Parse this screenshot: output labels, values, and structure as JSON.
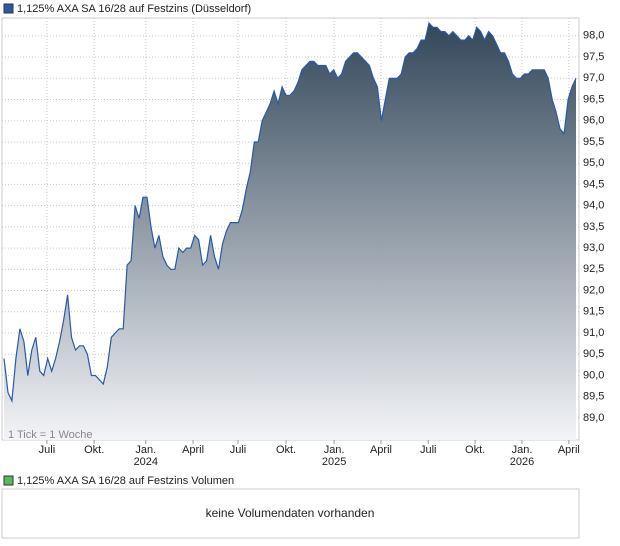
{
  "chart_data": {
    "type": "area",
    "title": "1,125% AXA SA 16/28 auf Festzins (Düsseldorf)",
    "color": "#2b58a8",
    "fill_gradient": [
      "#33475a",
      "#f3f4f7"
    ],
    "annotation": "1 Tick = 1 Woche",
    "grid": true,
    "ylim": [
      88.48,
      98.42
    ],
    "yticks": [
      {
        "value": 89,
        "label": "89,0"
      },
      {
        "value": 89.5,
        "label": "89,5"
      },
      {
        "value": 90,
        "label": "90,0"
      },
      {
        "value": 90.5,
        "label": "90,5"
      },
      {
        "value": 91,
        "label": "91,0"
      },
      {
        "value": 91.5,
        "label": "91,5"
      },
      {
        "value": 92,
        "label": "92,0"
      },
      {
        "value": 92.5,
        "label": "92,5"
      },
      {
        "value": 93,
        "label": "93,0"
      },
      {
        "value": 93.5,
        "label": "93,5"
      },
      {
        "value": 94,
        "label": "94,0"
      },
      {
        "value": 94.5,
        "label": "94,5"
      },
      {
        "value": 95,
        "label": "95,0"
      },
      {
        "value": 95.5,
        "label": "95,5"
      },
      {
        "value": 96,
        "label": "96,0"
      },
      {
        "value": 96.5,
        "label": "96,5"
      },
      {
        "value": 97,
        "label": "97,0"
      },
      {
        "value": 97.5,
        "label": "97,5"
      },
      {
        "value": 98,
        "label": "98,0"
      }
    ],
    "xlim": [
      0,
      144
    ],
    "xticks": [
      {
        "value": 10.8,
        "label": "Juli"
      },
      {
        "value": 22.7,
        "label": "Okt."
      },
      {
        "value": 35.7,
        "label": "Jan."
      },
      {
        "value": 47.6,
        "label": "April"
      },
      {
        "value": 58.9,
        "label": "Juli"
      },
      {
        "value": 71.0,
        "label": "Okt."
      },
      {
        "value": 83.1,
        "label": "Jan."
      },
      {
        "value": 94.9,
        "label": "April"
      },
      {
        "value": 106.8,
        "label": "Juli"
      },
      {
        "value": 118.6,
        "label": "Okt."
      },
      {
        "value": 130.4,
        "label": "Jan."
      },
      {
        "value": 142.2,
        "label": "April"
      }
    ],
    "year_ticks": [
      {
        "value": 35.7,
        "label": "2024"
      },
      {
        "value": 83.1,
        "label": "2025"
      },
      {
        "value": 130.4,
        "label": "2026"
      }
    ],
    "values": [
      90.4,
      89.6,
      89.4,
      90.4,
      91.1,
      90.8,
      90.0,
      90.6,
      90.9,
      90.1,
      90.0,
      90.4,
      90.1,
      90.4,
      90.8,
      91.3,
      91.9,
      90.9,
      90.6,
      90.7,
      90.7,
      90.5,
      90.0,
      90.0,
      89.9,
      89.8,
      90.2,
      90.9,
      91.0,
      91.1,
      91.1,
      92.6,
      92.7,
      94.0,
      93.7,
      94.2,
      94.2,
      93.5,
      93.0,
      93.3,
      92.8,
      92.6,
      92.5,
      92.5,
      93.0,
      92.9,
      93.0,
      93.0,
      93.3,
      93.2,
      92.6,
      92.7,
      93.3,
      92.8,
      92.5,
      93.1,
      93.4,
      93.6,
      93.6,
      93.6,
      93.9,
      94.4,
      94.8,
      95.5,
      95.5,
      96.0,
      96.2,
      96.4,
      96.7,
      96.4,
      96.8,
      96.6,
      96.6,
      96.7,
      96.9,
      97.2,
      97.3,
      97.4,
      97.4,
      97.3,
      97.3,
      97.3,
      97.1,
      97.2,
      97.0,
      97.1,
      97.4,
      97.5,
      97.6,
      97.6,
      97.5,
      97.4,
      97.3,
      97.0,
      96.8,
      96.0,
      96.5,
      97.0,
      97.0,
      97.0,
      97.1,
      97.5,
      97.6,
      97.6,
      97.7,
      97.9,
      97.9,
      98.3,
      98.2,
      98.2,
      98.1,
      98.1,
      98.0,
      98.1,
      98.0,
      97.9,
      97.9,
      98.0,
      97.9,
      98.2,
      98.1,
      97.9,
      98.1,
      98.0,
      97.8,
      97.6,
      97.6,
      97.4,
      97.1,
      97.0,
      97.0,
      97.1,
      97.1,
      97.2,
      97.2,
      97.2,
      97.2,
      97.0,
      96.5,
      96.2,
      95.8,
      95.7,
      96.5,
      96.8,
      97.0
    ],
    "volume_panel": {
      "title": "1,125% AXA SA 16/28 auf Festzins Volumen",
      "color": "#5cb85c",
      "message": "keine Volumendaten vorhanden"
    }
  }
}
